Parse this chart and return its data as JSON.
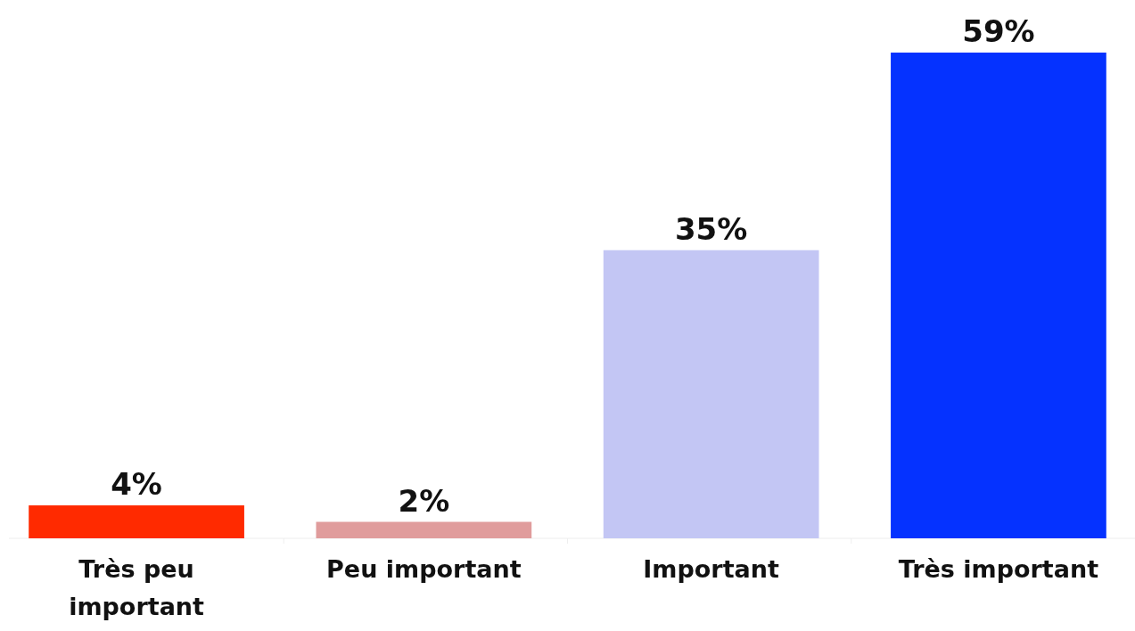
{
  "chart_data": {
    "type": "bar",
    "categories": [
      "Très peu important",
      "Peu important",
      "Important",
      "Très important"
    ],
    "values": [
      4,
      2,
      35,
      59
    ],
    "colors": [
      "#ff2a00",
      "#e09c9c",
      "#c3c6f4",
      "#0532ff"
    ],
    "value_labels": [
      "4%",
      "2%",
      "35%",
      "59%"
    ]
  }
}
